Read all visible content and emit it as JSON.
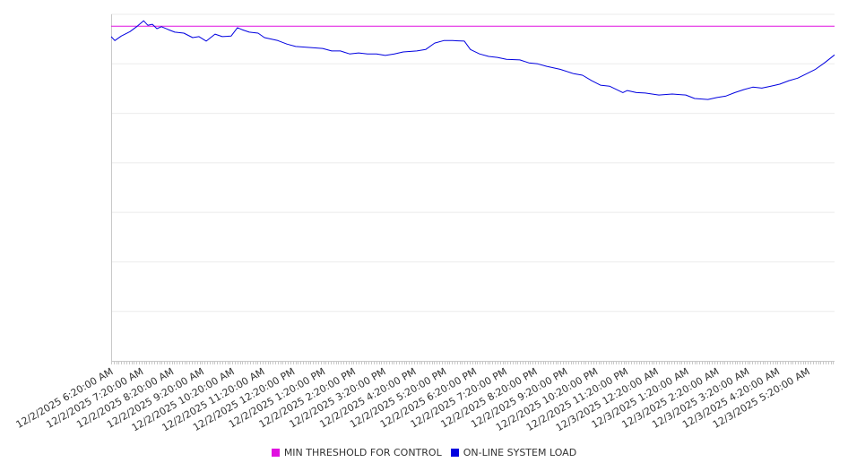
{
  "chart_data": {
    "type": "line",
    "title": "",
    "xlabel": "",
    "ylabel": "",
    "x_unit": "hours since 12/2/2025 6:20:00 AM",
    "xlim": [
      0,
      23.88
    ],
    "ylim": [
      0,
      7
    ],
    "y_gridlines": [
      1,
      2,
      3,
      4,
      5,
      6,
      7
    ],
    "grid": true,
    "legend_position": "bottom-center",
    "tick_labels": [
      "12/2/2025 6:20:00 AM",
      "12/2/2025 7:20:00 AM",
      "12/2/2025 8:20:00 AM",
      "12/2/2025 9:20:00 AM",
      "12/2/2025 10:20:00 AM",
      "12/2/2025 11:20:00 AM",
      "12/2/2025 12:20:00 PM",
      "12/2/2025 1:20:00 PM",
      "12/2/2025 2:20:00 PM",
      "12/2/2025 3:20:00 PM",
      "12/2/2025 4:20:00 PM",
      "12/2/2025 5:20:00 PM",
      "12/2/2025 6:20:00 PM",
      "12/2/2025 7:20:00 PM",
      "12/2/2025 8:20:00 PM",
      "12/2/2025 9:20:00 PM",
      "12/2/2025 10:20:00 PM",
      "12/2/2025 11:20:00 PM",
      "12/3/2025 12:20:00 AM",
      "12/3/2025 1:20:00 AM",
      "12/3/2025 2:20:00 AM",
      "12/3/2025 3:20:00 AM",
      "12/3/2025 4:20:00 AM",
      "12/3/2025 5:20:00 AM"
    ],
    "series": [
      {
        "name": "MIN THRESHOLD FOR CONTROL",
        "color": "#e010e0",
        "x": [
          0,
          23.88
        ],
        "values": [
          6.76,
          6.76
        ]
      },
      {
        "name": "ON-LINE SYSTEM LOAD",
        "color": "#0000e0",
        "x": [
          0,
          0.12,
          0.33,
          0.62,
          0.86,
          1.07,
          1.21,
          1.36,
          1.51,
          1.66,
          1.89,
          2.1,
          2.4,
          2.69,
          2.9,
          3.14,
          3.43,
          3.67,
          3.96,
          4.17,
          4.32,
          4.56,
          4.85,
          5.06,
          5.5,
          5.8,
          6.09,
          6.54,
          6.98,
          7.28,
          7.57,
          7.87,
          8.17,
          8.46,
          8.76,
          9.05,
          9.35,
          9.64,
          10.09,
          10.38,
          10.68,
          10.98,
          11.27,
          11.66,
          11.86,
          12.16,
          12.46,
          12.75,
          13.05,
          13.49,
          13.79,
          14.08,
          14.38,
          14.82,
          15.27,
          15.56,
          15.86,
          16.15,
          16.45,
          16.75,
          16.89,
          17.04,
          17.34,
          17.63,
          18.08,
          18.52,
          18.97,
          19.26,
          19.7,
          20.0,
          20.3,
          20.59,
          20.89,
          21.18,
          21.48,
          21.78,
          22.07,
          22.37,
          22.66,
          22.96,
          23.25,
          23.55,
          23.88
        ],
        "values": [
          6.55,
          6.47,
          6.56,
          6.65,
          6.76,
          6.87,
          6.78,
          6.8,
          6.71,
          6.75,
          6.69,
          6.64,
          6.62,
          6.53,
          6.55,
          6.46,
          6.6,
          6.55,
          6.56,
          6.73,
          6.69,
          6.64,
          6.62,
          6.53,
          6.47,
          6.4,
          6.35,
          6.33,
          6.31,
          6.26,
          6.26,
          6.2,
          6.22,
          6.2,
          6.2,
          6.17,
          6.2,
          6.24,
          6.26,
          6.29,
          6.42,
          6.47,
          6.47,
          6.46,
          6.29,
          6.2,
          6.15,
          6.13,
          6.09,
          6.08,
          6.02,
          6.0,
          5.95,
          5.89,
          5.8,
          5.77,
          5.66,
          5.57,
          5.55,
          5.46,
          5.42,
          5.46,
          5.42,
          5.41,
          5.37,
          5.39,
          5.37,
          5.3,
          5.28,
          5.32,
          5.35,
          5.42,
          5.48,
          5.53,
          5.51,
          5.55,
          5.59,
          5.66,
          5.71,
          5.8,
          5.89,
          6.02,
          6.18
        ]
      }
    ]
  },
  "legend": {
    "items": [
      "MIN THRESHOLD FOR CONTROL",
      "ON-LINE SYSTEM LOAD"
    ]
  }
}
